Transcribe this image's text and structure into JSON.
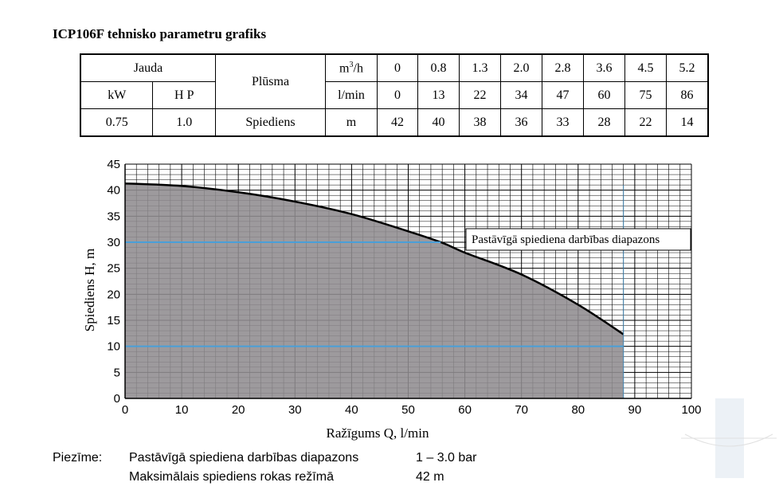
{
  "title": "ICP106F tehnisko parametru grafiks",
  "table": {
    "jauda": "Jauda",
    "kw": "kW",
    "hp": "H P",
    "plusma": "Plūsma",
    "unit_m3h": "m",
    "unit_m3h_sup": "3",
    "unit_m3h_tail": "/h",
    "unit_lmin": "l/min",
    "kw_value": "0.75",
    "hp_value": "1.0",
    "spiediens": "Spiediens",
    "unit_m": "m",
    "m3h": [
      "0",
      "0.8",
      "1.3",
      "2.0",
      "2.8",
      "3.6",
      "4.5",
      "5.2"
    ],
    "lmin": [
      "0",
      "13",
      "22",
      "34",
      "47",
      "60",
      "75",
      "86"
    ],
    "head": [
      "42",
      "40",
      "38",
      "36",
      "33",
      "28",
      "22",
      "14"
    ]
  },
  "chart_data": {
    "type": "area",
    "title": "",
    "xlabel": "Ražīgums Q, l/min",
    "ylabel": "Spiediens H, m",
    "xlim": [
      0,
      100
    ],
    "ylim": [
      0,
      45
    ],
    "x_ticks": [
      "0",
      "10",
      "20",
      "30",
      "40",
      "50",
      "60",
      "70",
      "80",
      "90",
      "100"
    ],
    "y_ticks": [
      "0",
      "5",
      "10",
      "15",
      "20",
      "25",
      "30",
      "35",
      "40",
      "45"
    ],
    "grid": true,
    "series": [
      {
        "values_x": [
          0,
          10,
          20,
          30,
          40,
          50,
          56,
          60,
          70,
          80,
          88
        ],
        "values_y": [
          41.3,
          40.8,
          39.6,
          37.8,
          35.4,
          32.1,
          29.9,
          28.0,
          23.8,
          18.0,
          12.3
        ],
        "color": "#000000",
        "fill": "#8f8c8f"
      }
    ],
    "range_lines": [
      10,
      30
    ],
    "range_line_color": "#4a9fd8",
    "annotation": "Pastāvīgā spiediena darbības diapazons"
  },
  "notes": {
    "label": "Piezīme:",
    "rows": [
      {
        "text": "Pastāvīgā spiediena darbības diapazons",
        "value": "1 – 3.0 bar"
      },
      {
        "text": "Maksimālais spiediens rokas režīmā",
        "value": "42 m"
      }
    ]
  }
}
